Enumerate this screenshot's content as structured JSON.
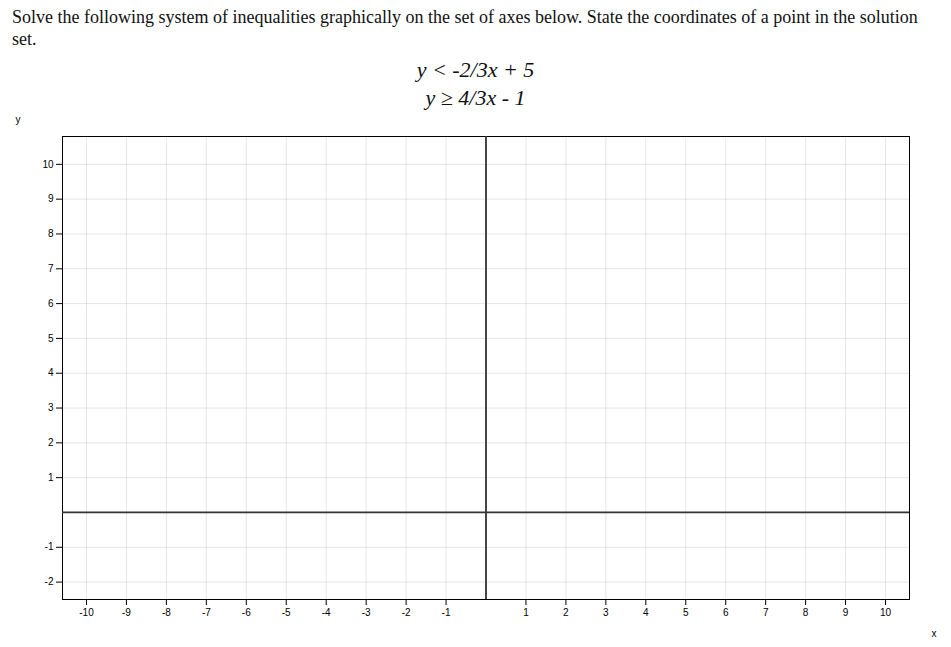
{
  "chart_data": {
    "type": "coordinate_plane",
    "title": "Solve the following system of inequalities graphically on the set of axes below. State the coordinates of a point in the solution set.",
    "annotations": [
      "y < -2/3x + 5",
      "y ≥ 4/3x - 1"
    ],
    "x_label": "x",
    "y_label": "y",
    "xlim": [
      -10.6,
      10.6
    ],
    "ylim": [
      -2.5,
      10.8
    ],
    "xticks": [
      -10,
      -9,
      -8,
      -7,
      -6,
      -5,
      -4,
      -3,
      -2,
      -1,
      1,
      2,
      3,
      4,
      5,
      6,
      7,
      8,
      9,
      10
    ],
    "yticks": [
      -2,
      -1,
      1,
      2,
      3,
      4,
      5,
      6,
      7,
      8,
      9,
      10
    ],
    "grid": true
  }
}
